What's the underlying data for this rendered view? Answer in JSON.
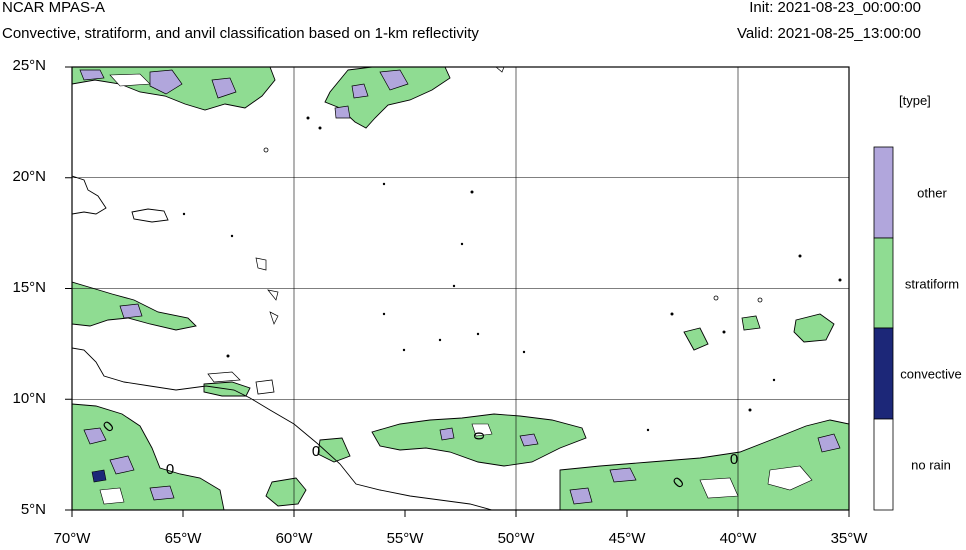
{
  "header": {
    "title": "NCAR MPAS-A",
    "subtitle": "Convective, stratiform, and anvil classification based on 1-km reflectivity",
    "init": "Init: 2021-08-23_00:00:00",
    "valid": "Valid: 2021-08-25_13:00:00"
  },
  "map": {
    "lat_ticks": [
      "25°N",
      "20°N",
      "15°N",
      "10°N",
      "5°N"
    ],
    "lon_ticks": [
      "70°W",
      "65°W",
      "60°W",
      "55°W",
      "50°W",
      "45°W",
      "40°W",
      "35°W"
    ],
    "lat_range": [
      5,
      25
    ],
    "lon_range": [
      -70,
      -35
    ],
    "contour_labels": [
      "0",
      "0",
      "0",
      "0",
      "0",
      "0"
    ]
  },
  "legend": {
    "title": "[type]",
    "items": [
      {
        "label": "other",
        "color": "#b1a6dc"
      },
      {
        "label": "stratiform",
        "color": "#8fdc92"
      },
      {
        "label": "convective",
        "color": "#1c2778"
      },
      {
        "label": "no rain",
        "color": "#ffffff"
      }
    ]
  }
}
